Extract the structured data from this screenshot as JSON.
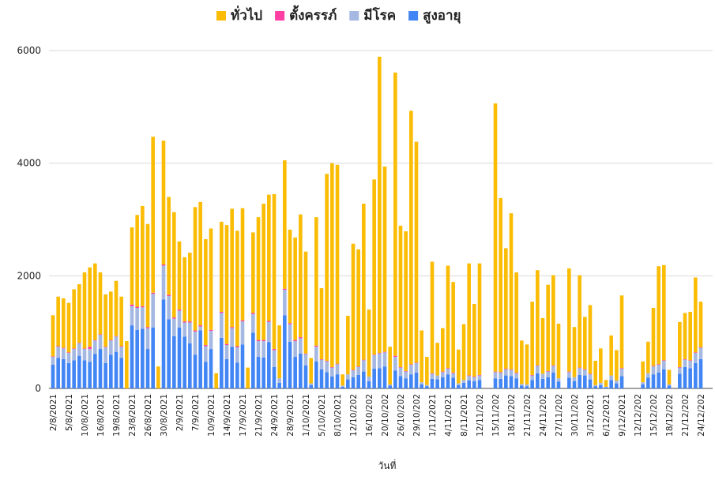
{
  "chart_data": {
    "type": "stacked_bar",
    "x_label": "วันที่",
    "categories": [
      "2/8/2021",
      null,
      null,
      "5/8/2021",
      null,
      null,
      "10/8/2021",
      null,
      null,
      "16/8/2021",
      null,
      null,
      "19/8/2021",
      null,
      null,
      "23/8/2021",
      null,
      null,
      "26/8/2021",
      null,
      null,
      "30/8/2021",
      null,
      null,
      "2/9/2021",
      null,
      null,
      "7/9/2021",
      null,
      null,
      "10/9/2021",
      null,
      null,
      "14/9/2021",
      null,
      null,
      "17/9/2021",
      null,
      null,
      "21/9/2021",
      null,
      null,
      "24/9/2021",
      null,
      null,
      "28/9/2021",
      null,
      null,
      "1/10/2021",
      null,
      null,
      "5/10/2021",
      null,
      null,
      "8/10/2021",
      null,
      null,
      "12/10/202",
      null,
      null,
      "16/10/202",
      null,
      null,
      "20/10/202",
      null,
      null,
      "26/10/202",
      null,
      null,
      "29/10/202",
      null,
      null,
      "1/11/2021",
      null,
      null,
      "4/11/2021",
      null,
      null,
      "8/11/2021",
      null,
      null,
      "12/11/202",
      null,
      null,
      "15/11/202",
      null,
      null,
      "18/11/202",
      null,
      null,
      "21/11/202",
      null,
      null,
      "24/11/202",
      null,
      null,
      "27/11/202",
      null,
      null,
      "30/11/202",
      null,
      null,
      "3/12/2021",
      null,
      null,
      "6/12/2021",
      null,
      null,
      "9/12/2021",
      null,
      null,
      "12/12/202",
      null,
      null,
      "15/12/202",
      null,
      null,
      "18/12/202",
      null,
      null,
      "21/12/202",
      null,
      null,
      "24/12/202"
    ],
    "series": [
      {
        "name": "ทั่วไป",
        "color": "#fbbc04",
        "values": [
          730,
          880,
          880,
          880,
          1050,
          1040,
          1350,
          1410,
          1360,
          1100,
          930,
          860,
          980,
          880,
          840,
          1370,
          1630,
          1780,
          1830,
          2770,
          390,
          2200,
          1740,
          1870,
          1210,
          1140,
          1220,
          2190,
          2190,
          1880,
          1800,
          270,
          1600,
          2110,
          2100,
          2050,
          1990,
          370,
          1430,
          2180,
          2420,
          2240,
          2750,
          940,
          2280,
          1660,
          1820,
          2180,
          1810,
          450,
          2280,
          1260,
          3320,
          3620,
          3530,
          200,
          1040,
          2240,
          2080,
          2770,
          1190,
          3110,
          5260,
          3290,
          670,
          5030,
          2510,
          2480,
          4500,
          3920,
          920,
          500,
          1980,
          580,
          770,
          1820,
          1610,
          600,
          990,
          1990,
          1290,
          1980,
          0,
          0,
          4760,
          3090,
          2140,
          2770,
          1780,
          770,
          710,
          1300,
          1690,
          990,
          1530,
          1600,
          970,
          0,
          1830,
          890,
          1640,
          930,
          1220,
          430,
          610,
          120,
          710,
          540,
          1290,
          0,
          0,
          0,
          370,
          560,
          1030,
          1740,
          1690,
          260,
          0,
          800,
          820,
          860,
          1330,
          810
        ]
      },
      {
        "name": "ตั้งครรภ์",
        "color": "#ff3fa4",
        "values": [
          10,
          10,
          10,
          10,
          10,
          10,
          10,
          40,
          10,
          10,
          10,
          10,
          10,
          10,
          0,
          30,
          20,
          20,
          20,
          20,
          0,
          20,
          20,
          20,
          20,
          20,
          20,
          20,
          20,
          20,
          20,
          0,
          20,
          20,
          20,
          20,
          20,
          0,
          20,
          20,
          20,
          20,
          20,
          0,
          20,
          20,
          20,
          20,
          10,
          0,
          20,
          10,
          10,
          10,
          10,
          0,
          0,
          10,
          10,
          10,
          0,
          10,
          10,
          10,
          0,
          20,
          10,
          10,
          10,
          10,
          0,
          0,
          10,
          0,
          10,
          10,
          10,
          0,
          0,
          10,
          10,
          10,
          0,
          0,
          10,
          10,
          10,
          10,
          10,
          0,
          0,
          10,
          10,
          0,
          10,
          10,
          0,
          0,
          10,
          0,
          10,
          10,
          10,
          0,
          0,
          0,
          0,
          0,
          10,
          0,
          0,
          0,
          0,
          0,
          10,
          10,
          10,
          0,
          0,
          10,
          10,
          10,
          10,
          10
        ]
      },
      {
        "name": "มีโรค",
        "color": "#a4b8e2",
        "values": [
          140,
          200,
          190,
          180,
          200,
          220,
          200,
          230,
          240,
          250,
          280,
          250,
          270,
          200,
          0,
          340,
          390,
          380,
          370,
          600,
          0,
          600,
          410,
          310,
          300,
          250,
          370,
          410,
          70,
          280,
          320,
          0,
          440,
          250,
          330,
          270,
          410,
          0,
          330,
          280,
          290,
          360,
          300,
          80,
          450,
          310,
          280,
          270,
          200,
          30,
          260,
          170,
          190,
          160,
          180,
          20,
          90,
          120,
          140,
          200,
          80,
          240,
          260,
          250,
          20,
          240,
          150,
          120,
          170,
          170,
          40,
          20,
          90,
          70,
          90,
          100,
          80,
          30,
          50,
          80,
          70,
          80,
          0,
          0,
          110,
          110,
          110,
          110,
          90,
          30,
          30,
          80,
          130,
          90,
          100,
          120,
          60,
          0,
          100,
          70,
          120,
          100,
          90,
          20,
          40,
          10,
          80,
          50,
          130,
          0,
          0,
          0,
          40,
          80,
          140,
          140,
          150,
          20,
          0,
          110,
          130,
          130,
          180,
          200
        ]
      },
      {
        "name": "สูงอายุ",
        "color": "#4285f4",
        "values": [
          420,
          540,
          520,
          450,
          500,
          580,
          500,
          470,
          610,
          700,
          450,
          600,
          650,
          540,
          0,
          1120,
          1040,
          1060,
          700,
          1080,
          0,
          1580,
          1230,
          930,
          1080,
          920,
          800,
          600,
          1030,
          470,
          700,
          0,
          900,
          520,
          740,
          460,
          780,
          0,
          990,
          560,
          550,
          820,
          380,
          100,
          1300,
          830,
          560,
          620,
          410,
          60,
          480,
          340,
          290,
          210,
          250,
          30,
          160,
          200,
          240,
          300,
          130,
          350,
          360,
          390,
          50,
          320,
          220,
          180,
          250,
          280,
          70,
          40,
          170,
          160,
          200,
          250,
          190,
          60,
          100,
          140,
          130,
          150,
          0,
          0,
          180,
          170,
          230,
          220,
          180,
          50,
          40,
          150,
          270,
          170,
          200,
          280,
          120,
          0,
          190,
          130,
          240,
          230,
          160,
          40,
          60,
          20,
          150,
          90,
          220,
          0,
          0,
          0,
          70,
          190,
          250,
          280,
          340,
          50,
          0,
          260,
          380,
          360,
          450,
          520
        ]
      }
    ],
    "ylim": [
      0,
      6000
    ],
    "yticks": [
      0,
      2000,
      4000,
      6000
    ],
    "grid": true,
    "legend": "top"
  }
}
